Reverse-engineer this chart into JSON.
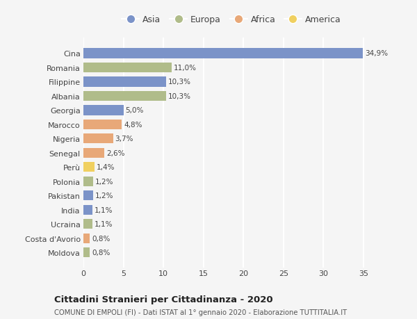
{
  "countries": [
    "Cina",
    "Romania",
    "Filippine",
    "Albania",
    "Georgia",
    "Marocco",
    "Nigeria",
    "Senegal",
    "Perù",
    "Polonia",
    "Pakistan",
    "India",
    "Ucraina",
    "Costa d'Avorio",
    "Moldova"
  ],
  "values": [
    34.9,
    11.0,
    10.3,
    10.3,
    5.0,
    4.8,
    3.7,
    2.6,
    1.4,
    1.2,
    1.2,
    1.1,
    1.1,
    0.8,
    0.8
  ],
  "labels": [
    "34,9%",
    "11,0%",
    "10,3%",
    "10,3%",
    "5,0%",
    "4,8%",
    "3,7%",
    "2,6%",
    "1,4%",
    "1,2%",
    "1,2%",
    "1,1%",
    "1,1%",
    "0,8%",
    "0,8%"
  ],
  "continents": [
    "Asia",
    "Europa",
    "Asia",
    "Europa",
    "Asia",
    "Africa",
    "Africa",
    "Africa",
    "America",
    "Europa",
    "Asia",
    "Asia",
    "Europa",
    "Africa",
    "Europa"
  ],
  "continent_colors": {
    "Asia": "#7b93c8",
    "Europa": "#b0bc8a",
    "Africa": "#e8a878",
    "America": "#f0d060"
  },
  "legend_order": [
    "Asia",
    "Europa",
    "Africa",
    "America"
  ],
  "title": "Cittadini Stranieri per Cittadinanza - 2020",
  "subtitle": "COMUNE DI EMPOLI (FI) - Dati ISTAT al 1° gennaio 2020 - Elaborazione TUTTITALIA.IT",
  "xlim": [
    0,
    37
  ],
  "xticks": [
    0,
    5,
    10,
    15,
    20,
    25,
    30,
    35
  ],
  "background_color": "#f5f5f5",
  "grid_color": "#ffffff",
  "bar_height": 0.7
}
